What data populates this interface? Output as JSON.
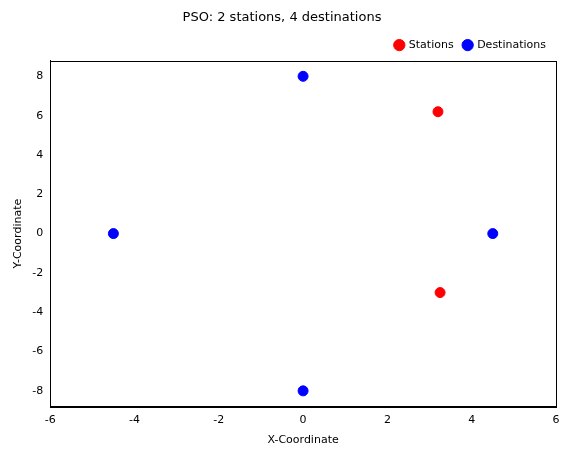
{
  "chart_data": {
    "type": "scatter",
    "title": "PSO: 2 stations, 4 destinations",
    "x_label": "X-Coordinate",
    "y_label": "Y-Coordinate",
    "series": [
      {
        "name": "Stations",
        "color": "#ff0000",
        "marker": "circle",
        "x": [
          3.2,
          3.25
        ],
        "values": [
          6.2,
          -3.0
        ]
      },
      {
        "name": "Destinations",
        "color": "#0000ff",
        "marker": "circle",
        "x": [
          0,
          -4.5,
          4.5,
          0
        ],
        "values": [
          8,
          0,
          0,
          -8
        ]
      }
    ],
    "xlim": [
      -6,
      6
    ],
    "xticks": [
      -6,
      -4,
      -2,
      0,
      2,
      4,
      6
    ],
    "ylim": [
      -8.8,
      8.8
    ],
    "yticks": [
      -8,
      -6,
      -4,
      -2,
      0,
      2,
      4,
      6,
      8
    ],
    "grid": false,
    "legend": "upper right"
  }
}
